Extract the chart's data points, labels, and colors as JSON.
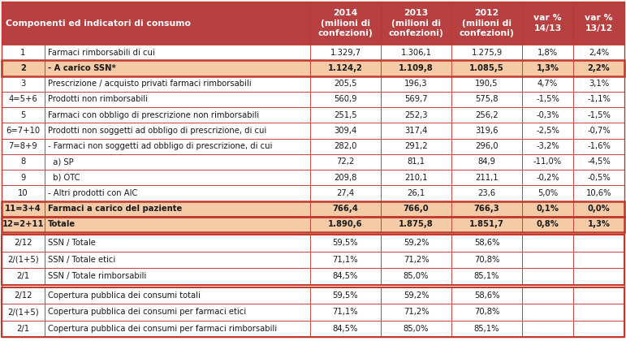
{
  "figsize": [
    7.71,
    4.2
  ],
  "dpi": 100,
  "header_bg": "#c04a40",
  "header_text": "#ffffff",
  "col1_label": "Componenti ed indicatori di consumo",
  "col_headers": [
    "2014\n(milioni di\nconfezioni)",
    "2013\n(milioni di\nconfezioni)",
    "2012\n(milioni di\nconfezioni)",
    "var %\n14/13",
    "var %\n13/12"
  ],
  "rows": [
    {
      "num": "1",
      "label": "Farmaci rimborsabili di cui",
      "bold": false,
      "bg": "#ffffff",
      "v2014": "1.329,7",
      "v2013": "1.306,1",
      "v2012": "1.275,9",
      "var1413": "1,8%",
      "var1312": "2,4%",
      "highlight": false
    },
    {
      "num": "2",
      "label": "- A carico SSN*",
      "bold": true,
      "bg": "#f5cba7",
      "v2014": "1.124,2",
      "v2013": "1.109,8",
      "v2012": "1.085,5",
      "var1413": "1,3%",
      "var1312": "2,2%",
      "highlight": true
    },
    {
      "num": "3",
      "label": "Prescrizione / acquisto privati farmaci rimborsabili",
      "bold": false,
      "bg": "#ffffff",
      "v2014": "205,5",
      "v2013": "196,3",
      "v2012": "190,5",
      "var1413": "4,7%",
      "var1312": "3,1%",
      "highlight": false
    },
    {
      "num": "4=5+6",
      "label": "Prodotti non rimborsabili",
      "bold": false,
      "bg": "#ffffff",
      "v2014": "560,9",
      "v2013": "569,7",
      "v2012": "575,8",
      "var1413": "-1,5%",
      "var1312": "-1,1%",
      "highlight": false
    },
    {
      "num": "5",
      "label": "Farmaci con obbligo di prescrizione non rimborsabili",
      "bold": false,
      "bg": "#ffffff",
      "v2014": "251,5",
      "v2013": "252,3",
      "v2012": "256,2",
      "var1413": "-0,3%",
      "var1312": "-1,5%",
      "highlight": false
    },
    {
      "num": "6=7+10",
      "label": "Prodotti non soggetti ad obbligo di prescrizione, di cui",
      "bold": false,
      "bg": "#ffffff",
      "v2014": "309,4",
      "v2013": "317,4",
      "v2012": "319,6",
      "var1413": "-2,5%",
      "var1312": "-0,7%",
      "highlight": false
    },
    {
      "num": "7=8+9",
      "label": "- Farmaci non soggetti ad obbligo di prescrizione, di cui",
      "bold": false,
      "bg": "#ffffff",
      "v2014": "282,0",
      "v2013": "291,2",
      "v2012": "296,0",
      "var1413": "-3,2%",
      "var1312": "-1,6%",
      "highlight": false
    },
    {
      "num": "8",
      "label": "  a) SP",
      "bold": false,
      "bg": "#ffffff",
      "v2014": "72,2",
      "v2013": "81,1",
      "v2012": "84,9",
      "var1413": "-11,0%",
      "var1312": "-4,5%",
      "highlight": false
    },
    {
      "num": "9",
      "label": "  b) OTC",
      "bold": false,
      "bg": "#ffffff",
      "v2014": "209,8",
      "v2013": "210,1",
      "v2012": "211,1",
      "var1413": "-0,2%",
      "var1312": "-0,5%",
      "highlight": false
    },
    {
      "num": "10",
      "label": "- Altri prodotti con AIC",
      "bold": false,
      "bg": "#ffffff",
      "v2014": "27,4",
      "v2013": "26,1",
      "v2012": "23,6",
      "var1413": "5,0%",
      "var1312": "10,6%",
      "highlight": false
    },
    {
      "num": "11=3+4",
      "label": "Farmaci a carico del paziente",
      "bold": true,
      "bg": "#f5cba7",
      "v2014": "766,4",
      "v2013": "766,0",
      "v2012": "766,3",
      "var1413": "0,1%",
      "var1312": "0,0%",
      "highlight": true
    },
    {
      "num": "12=2+11",
      "label": "Totale",
      "bold": true,
      "bg": "#f5cba7",
      "v2014": "1.890,6",
      "v2013": "1.875,8",
      "v2012": "1.851,7",
      "var1413": "0,8%",
      "var1312": "1,3%",
      "highlight": true
    }
  ],
  "ratio_groups": [
    [
      {
        "num": "2/12",
        "label": "SSN / Totale",
        "v2014": "59,5%",
        "v2013": "59,2%",
        "v2012": "58,6%"
      },
      {
        "num": "2/(1+5)",
        "label": "SSN / Totale etici",
        "v2014": "71,1%",
        "v2013": "71,2%",
        "v2012": "70,8%"
      },
      {
        "num": "2/1",
        "label": "SSN / Totale rimborsabili",
        "v2014": "84,5%",
        "v2013": "85,0%",
        "v2012": "85,1%"
      }
    ],
    [
      {
        "num": "2/12",
        "label": "Copertura pubblica dei consumi totali",
        "v2014": "59,5%",
        "v2013": "59,2%",
        "v2012": "58,6%"
      },
      {
        "num": "2/(1+5)",
        "label": "Copertura pubblica dei consumi per farmaci etici",
        "v2014": "71,1%",
        "v2013": "71,2%",
        "v2012": "70,8%"
      },
      {
        "num": "2/1",
        "label": "Copertura pubblica dei consumi per farmaci rimborsabili",
        "v2014": "84,5%",
        "v2013": "85,0%",
        "v2012": "85,1%"
      }
    ]
  ],
  "dark_red": "#b94040",
  "border_red": "#c0392b",
  "light_orange": "#f5cba7",
  "text_dark": "#1a1a1a",
  "text_red": "#c0392b",
  "fontsize_header": 7.8,
  "fontsize_body": 7.2
}
